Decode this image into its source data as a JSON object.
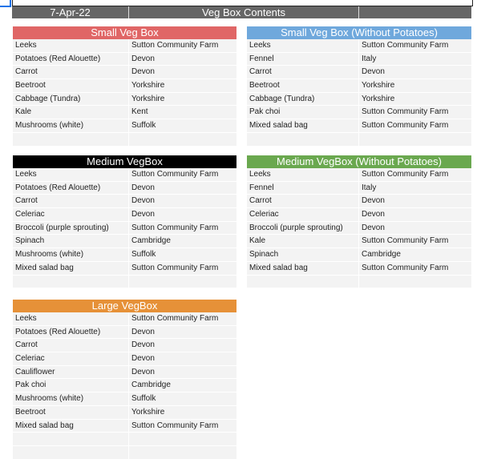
{
  "header": {
    "date": "7-Apr-22",
    "title": "Veg Box Contents",
    "extra": ""
  },
  "colors": {
    "header": "#666666",
    "small": "#e06666",
    "small_np": "#6fa8dc",
    "medium": "#000000",
    "medium_np": "#6aa84f",
    "large": "#e69138"
  },
  "boxes": [
    {
      "title": "Small Veg Box",
      "color": "#e06666",
      "blank_rows": 1,
      "items": [
        [
          "Leeks",
          "Sutton Community Farm"
        ],
        [
          "Potatoes (Red Alouette)",
          "Devon"
        ],
        [
          "Carrot",
          "Devon"
        ],
        [
          "Beetroot",
          "Yorkshire"
        ],
        [
          "Cabbage (Tundra)",
          "Yorkshire"
        ],
        [
          "Kale",
          "Kent"
        ],
        [
          "Mushrooms (white)",
          "Suffolk"
        ]
      ]
    },
    {
      "title": "Small Veg Box (Without Potatoes)",
      "color": "#6fa8dc",
      "blank_rows": 1,
      "items": [
        [
          "Leeks",
          "Sutton Community Farm"
        ],
        [
          "Fennel",
          "Italy"
        ],
        [
          "Carrot",
          "Devon"
        ],
        [
          "Beetroot",
          "Yorkshire"
        ],
        [
          "Cabbage (Tundra)",
          "Yorkshire"
        ],
        [
          "Pak choi",
          "Sutton Community Farm"
        ],
        [
          "Mixed salad bag",
          "Sutton Community Farm"
        ]
      ]
    },
    {
      "title": "Medium VegBox",
      "color": "#000000",
      "blank_rows": 1,
      "items": [
        [
          "Leeks",
          "Sutton Community Farm"
        ],
        [
          "Potatoes (Red Alouette)",
          "Devon"
        ],
        [
          "Carrot",
          "Devon"
        ],
        [
          "Celeriac",
          "Devon"
        ],
        [
          "Broccoli (purple sprouting)",
          "Sutton Community Farm"
        ],
        [
          "Spinach",
          "Cambridge"
        ],
        [
          "Mushrooms (white)",
          "Suffolk"
        ],
        [
          "Mixed salad bag",
          "Sutton Community Farm"
        ]
      ]
    },
    {
      "title": "Medium VegBox (Without Potatoes)",
      "color": "#6aa84f",
      "blank_rows": 1,
      "items": [
        [
          "Leeks",
          "Sutton Community Farm"
        ],
        [
          "Fennel",
          "Italy"
        ],
        [
          "Carrot",
          "Devon"
        ],
        [
          "Celeriac",
          "Devon"
        ],
        [
          "Broccoli (purple sprouting)",
          "Devon"
        ],
        [
          "Kale",
          "Sutton Community Farm"
        ],
        [
          "Spinach",
          "Cambridge"
        ],
        [
          "Mixed salad bag",
          "Sutton Community Farm"
        ]
      ]
    },
    {
      "title": "Large VegBox",
      "color": "#e69138",
      "blank_rows": 2,
      "items": [
        [
          "Leeks",
          "Sutton Community Farm"
        ],
        [
          "Potatoes (Red Alouette)",
          "Devon"
        ],
        [
          "Carrot",
          "Devon"
        ],
        [
          "Celeriac",
          "Devon"
        ],
        [
          "Cauliflower",
          "Devon"
        ],
        [
          "Pak choi",
          "Cambridge"
        ],
        [
          "Mushrooms (white)",
          "Suffolk"
        ],
        [
          "Beetroot",
          "Yorkshire"
        ],
        [
          "Mixed salad bag",
          "Sutton Community Farm"
        ]
      ]
    }
  ]
}
